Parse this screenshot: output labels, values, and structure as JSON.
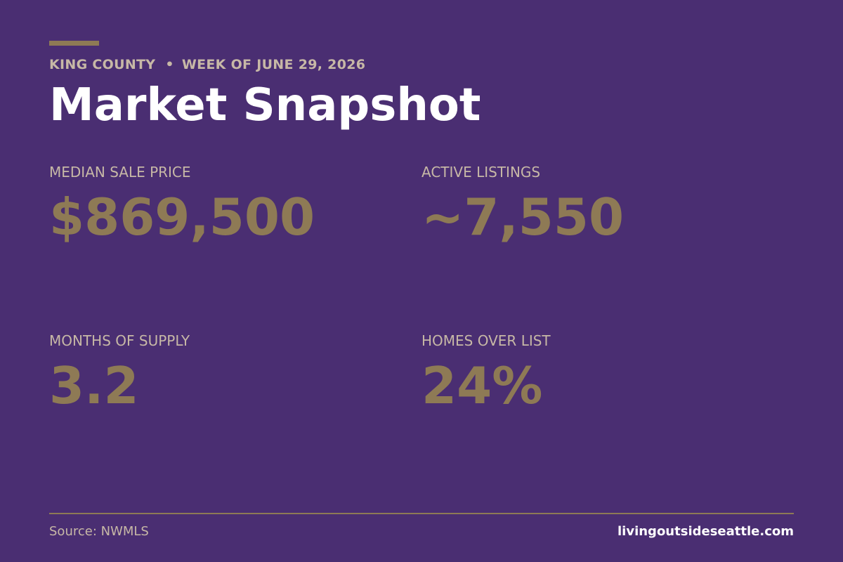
{
  "header": {
    "region": "KING COUNTY",
    "separator": "•",
    "week": "WEEK OF JUNE 29, 2026",
    "title": "Market Snapshot"
  },
  "stats": [
    {
      "label": "MEDIAN SALE PRICE",
      "value": "$869,500"
    },
    {
      "label": "ACTIVE LISTINGS",
      "value": "~7,550"
    },
    {
      "label": "MONTHS OF SUPPLY",
      "value": "3.2"
    },
    {
      "label": "HOMES OVER LIST",
      "value": "24%"
    }
  ],
  "footer": {
    "source": "Source: NWMLS",
    "website": "livingoutsideseattle.com"
  },
  "colors": {
    "background": "#4a2e72",
    "accent_gold": "#8e7a55",
    "muted_text": "#c7b8a6",
    "title_text": "#ffffff"
  }
}
